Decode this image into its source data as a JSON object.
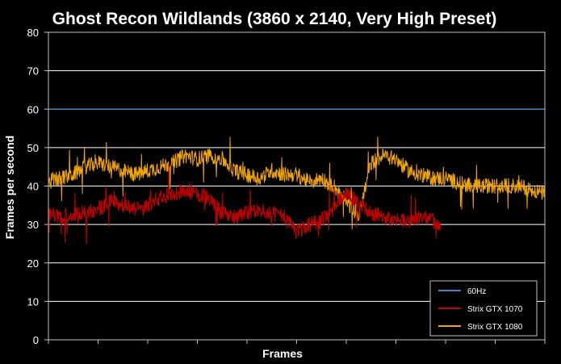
{
  "chart_data": {
    "type": "line",
    "title": "Ghost Recon Wildlands (3860 x 2140, Very High Preset)",
    "xlabel": "Frames",
    "ylabel": "Frames per second",
    "ylim": [
      0,
      80
    ],
    "yticks": [
      0,
      10,
      20,
      30,
      40,
      50,
      60,
      70,
      80
    ],
    "xlim": [
      0,
      1000
    ],
    "grid": true,
    "legend_position": "bottom-right",
    "series": [
      {
        "name": "60Hz",
        "color": "#4f81bd",
        "x": [
          0,
          1000
        ],
        "values": [
          60,
          60
        ]
      },
      {
        "name": "Strix GTX 1070",
        "color": "#c00000",
        "x": [
          0,
          25,
          50,
          75,
          100,
          125,
          150,
          175,
          200,
          225,
          250,
          275,
          300,
          325,
          350,
          375,
          400,
          425,
          450,
          475,
          500,
          525,
          550,
          575,
          600,
          625,
          650,
          675,
          700,
          725,
          750,
          775,
          790
        ],
        "values": [
          33,
          32,
          33,
          33,
          34,
          36,
          35,
          34,
          35,
          37,
          38,
          39,
          38,
          37,
          33,
          32,
          33,
          34,
          33,
          32,
          28,
          30,
          31,
          35,
          38,
          36,
          33,
          32,
          31,
          31,
          32,
          31,
          29
        ]
      },
      {
        "name": "Strix GTX 1080",
        "color": "#f0a500",
        "x": [
          0,
          25,
          50,
          75,
          100,
          125,
          150,
          175,
          200,
          225,
          250,
          275,
          300,
          325,
          350,
          375,
          400,
          425,
          450,
          475,
          500,
          525,
          550,
          575,
          600,
          625,
          650,
          675,
          700,
          725,
          750,
          775,
          800,
          825,
          850,
          875,
          900,
          925,
          950,
          975,
          1000
        ],
        "values": [
          41,
          42,
          43,
          45,
          46,
          45,
          44,
          43,
          44,
          45,
          46,
          48,
          47,
          48,
          47,
          44,
          43,
          42,
          44,
          43,
          43,
          41,
          42,
          40,
          36,
          32,
          46,
          48,
          47,
          44,
          43,
          42,
          42,
          41,
          40,
          40,
          40,
          40,
          40,
          39,
          38
        ]
      }
    ]
  }
}
